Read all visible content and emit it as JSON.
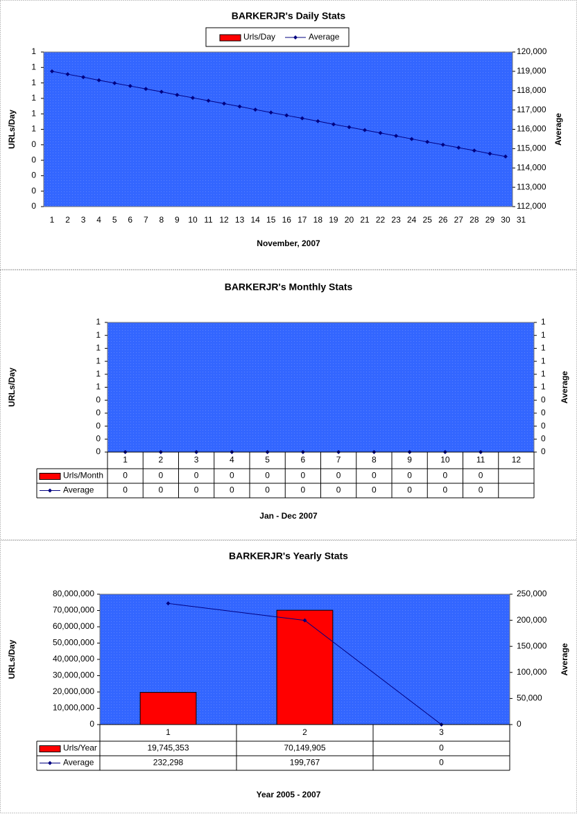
{
  "chart_data": [
    {
      "type": "bar_line",
      "title": "BARKERJR's Daily Stats",
      "xlabel": "November, 2007",
      "ylabel": "URLs/Day",
      "y2label": "Average",
      "legend": "top",
      "grid": false,
      "categories": [
        "1",
        "2",
        "3",
        "4",
        "5",
        "6",
        "7",
        "8",
        "9",
        "10",
        "11",
        "12",
        "13",
        "14",
        "15",
        "16",
        "17",
        "18",
        "19",
        "20",
        "21",
        "22",
        "23",
        "24",
        "25",
        "26",
        "27",
        "28",
        "29",
        "30",
        "31"
      ],
      "series": [
        {
          "name": "Urls/Day",
          "type": "bar",
          "color": "#ff0000",
          "values": [
            0,
            0,
            0,
            0,
            0,
            0,
            0,
            0,
            0,
            0,
            0,
            0,
            0,
            0,
            0,
            0,
            0,
            0,
            0,
            0,
            0,
            0,
            0,
            0,
            0,
            0,
            0,
            0,
            0,
            0,
            null
          ]
        },
        {
          "name": "Average",
          "type": "line",
          "axis": "y2",
          "color": "#000080",
          "values": [
            119000,
            118850,
            118700,
            118540,
            118390,
            118240,
            118090,
            117940,
            117780,
            117630,
            117480,
            117330,
            117180,
            117020,
            116870,
            116720,
            116570,
            116420,
            116260,
            116110,
            115960,
            115810,
            115660,
            115500,
            115350,
            115200,
            115050,
            114900,
            114740,
            114590,
            null
          ]
        }
      ],
      "ylim": [
        0,
        1
      ],
      "yticks": [
        0,
        {
          "value": 0.1,
          "label": "0"
        },
        {
          "value": 0.2,
          "label": "0"
        },
        {
          "value": 0.3,
          "label": "0"
        },
        {
          "value": 0.4,
          "label": "0"
        },
        {
          "value": 0.5,
          "label": "1"
        },
        {
          "value": 0.6,
          "label": "1"
        },
        {
          "value": 0.7,
          "label": "1"
        },
        {
          "value": 0.8,
          "label": "1"
        },
        {
          "value": 0.9,
          "label": "1"
        },
        1
      ],
      "y2lim": [
        112000,
        120000
      ],
      "y2ticks": [
        {
          "value": 112000,
          "label": "112,000"
        },
        {
          "value": 113000,
          "label": "113,000"
        },
        {
          "value": 114000,
          "label": "114,000"
        },
        {
          "value": 115000,
          "label": "115,000"
        },
        {
          "value": 116000,
          "label": "116,000"
        },
        {
          "value": 117000,
          "label": "117,000"
        },
        {
          "value": 118000,
          "label": "118,000"
        },
        {
          "value": 119000,
          "label": "119,000"
        },
        {
          "value": 120000,
          "label": "120,000"
        }
      ]
    },
    {
      "type": "bar_line",
      "title": "BARKERJR's Monthly Stats",
      "xlabel": "Jan - Dec 2007",
      "ylabel": "URLs/Day",
      "y2label": "Average",
      "data_table": true,
      "grid": false,
      "categories": [
        "1",
        "2",
        "3",
        "4",
        "5",
        "6",
        "7",
        "8",
        "9",
        "10",
        "11",
        "12"
      ],
      "series": [
        {
          "name": "Urls/Month",
          "type": "bar",
          "color": "#ff0000",
          "values": [
            0,
            0,
            0,
            0,
            0,
            0,
            0,
            0,
            0,
            0,
            0,
            null
          ]
        },
        {
          "name": "Average",
          "type": "line",
          "axis": "y2",
          "color": "#000080",
          "values": [
            0,
            0,
            0,
            0,
            0,
            0,
            0,
            0,
            0,
            0,
            0,
            null
          ]
        }
      ],
      "ylim": [
        0,
        1
      ],
      "yticks": [
        0,
        {
          "value": 0.1,
          "label": "0"
        },
        {
          "value": 0.2,
          "label": "0"
        },
        {
          "value": 0.3,
          "label": "0"
        },
        {
          "value": 0.4,
          "label": "0"
        },
        {
          "value": 0.5,
          "label": "1"
        },
        {
          "value": 0.6,
          "label": "1"
        },
        {
          "value": 0.7,
          "label": "1"
        },
        {
          "value": 0.8,
          "label": "1"
        },
        {
          "value": 0.9,
          "label": "1"
        },
        1
      ],
      "y2lim": [
        0,
        1
      ],
      "y2ticks": [
        0,
        {
          "value": 0.1,
          "label": "0"
        },
        {
          "value": 0.2,
          "label": "0"
        },
        {
          "value": 0.3,
          "label": "0"
        },
        {
          "value": 0.4,
          "label": "0"
        },
        {
          "value": 0.5,
          "label": "1"
        },
        {
          "value": 0.6,
          "label": "1"
        },
        {
          "value": 0.7,
          "label": "1"
        },
        {
          "value": 0.8,
          "label": "1"
        },
        {
          "value": 0.9,
          "label": "1"
        },
        1
      ]
    },
    {
      "type": "bar_line",
      "title": "BARKERJR's Yearly Stats",
      "xlabel": "Year 2005 - 2007",
      "ylabel": "URLs/Day",
      "y2label": "Average",
      "data_table": true,
      "grid": false,
      "categories": [
        "1",
        "2",
        "3"
      ],
      "series": [
        {
          "name": "Urls/Year",
          "type": "bar",
          "color": "#ff0000",
          "values": [
            19745353,
            70149905,
            0
          ],
          "value_labels": [
            "19,745,353",
            "70,149,905",
            "0"
          ]
        },
        {
          "name": "Average",
          "type": "line",
          "axis": "y2",
          "color": "#000080",
          "values": [
            232298,
            199767,
            0
          ],
          "value_labels": [
            "232,298",
            "199,767",
            "0"
          ]
        }
      ],
      "ylim": [
        0,
        80000000
      ],
      "yticks": [
        0,
        {
          "value": 10000000,
          "label": "10,000,000"
        },
        {
          "value": 20000000,
          "label": "20,000,000"
        },
        {
          "value": 30000000,
          "label": "30,000,000"
        },
        {
          "value": 40000000,
          "label": "40,000,000"
        },
        {
          "value": 50000000,
          "label": "50,000,000"
        },
        {
          "value": 60000000,
          "label": "60,000,000"
        },
        {
          "value": 70000000,
          "label": "70,000,000"
        },
        {
          "value": 80000000,
          "label": "80,000,000"
        }
      ],
      "y2lim": [
        0,
        250000
      ],
      "y2ticks": [
        0,
        {
          "value": 50000,
          "label": "50,000"
        },
        {
          "value": 100000,
          "label": "100,000"
        },
        {
          "value": 150000,
          "label": "150,000"
        },
        {
          "value": 200000,
          "label": "200,000"
        },
        {
          "value": 250000,
          "label": "250,000"
        }
      ]
    }
  ]
}
